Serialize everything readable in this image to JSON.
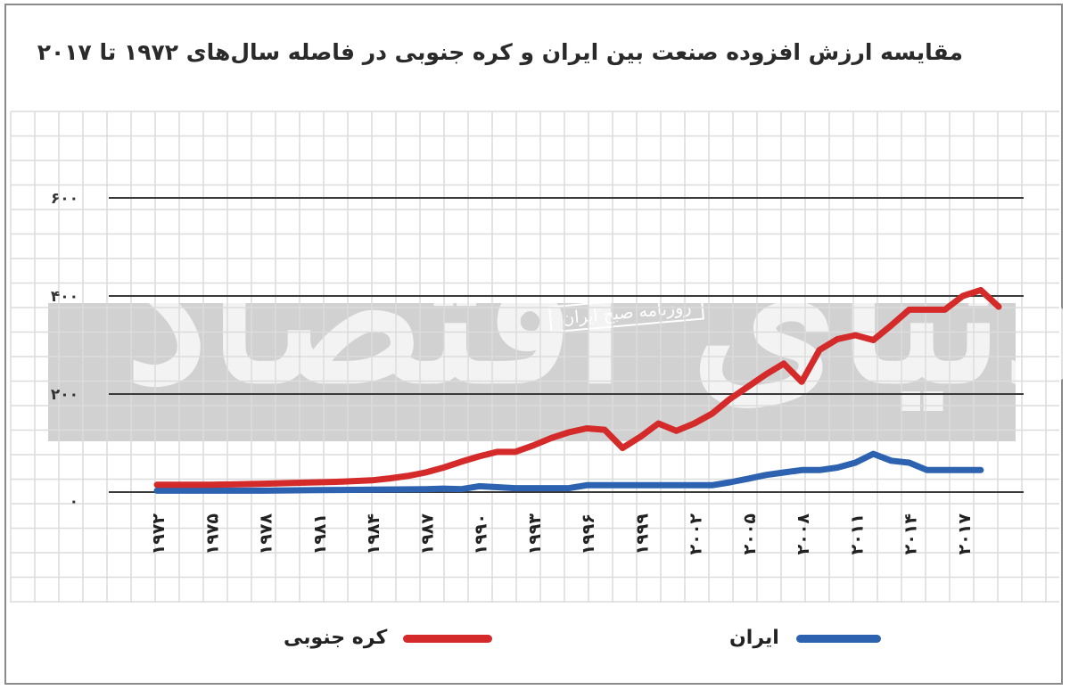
{
  "title": "مقایسه ارزش افزوده صنعت بین ایران و کره جنوبی در فاصله سال‌های ۱۹۷۲ تا ۲۰۱۷",
  "watermark": {
    "main": "دنیای اقتصاد",
    "sub": "روزنامه صبح ایران"
  },
  "legend": {
    "korea": "کره جنوبی",
    "iran": "ایران"
  },
  "colors": {
    "korea": "#d42a2a",
    "iran": "#2d62b0",
    "grid": "#dcdcdc",
    "major_grid": "#3a3a3a"
  },
  "chart_data": {
    "type": "line",
    "title": "مقایسه ارزش افزوده صنعت بین ایران و کره جنوبی در فاصله سال‌های ۱۹۷۲ تا ۲۰۱۷",
    "ylim": [
      0,
      600
    ],
    "y_ticks": [
      0,
      200,
      400,
      600
    ],
    "y_tick_labels": [
      "۰",
      "۲۰۰",
      "۴۰۰",
      "۶۰۰"
    ],
    "x_ticks": [
      1972,
      1975,
      1978,
      1981,
      1984,
      1987,
      1990,
      1993,
      1996,
      1999,
      2002,
      2005,
      2008,
      2011,
      2014,
      2017
    ],
    "x_tick_labels": [
      "۱۹۷۲",
      "۱۹۷۵",
      "۱۹۷۸",
      "۱۹۸۱",
      "۱۹۸۴",
      "۱۹۸۷",
      "۱۹۹۰",
      "۱۹۹۳",
      "۱۹۹۶",
      "۱۹۹۹",
      "۲۰۰۲",
      "۲۰۰۵",
      "۲۰۰۸",
      "۲۰۱۱",
      "۲۰۱۴",
      "۲۰۱۷"
    ],
    "grid": true,
    "legend_position": "bottom",
    "series": [
      {
        "name": "کره جنوبی",
        "color": "#d42a2a",
        "x": [
          1972,
          1975,
          1978,
          1980,
          1982,
          1984,
          1985,
          1986,
          1987,
          1988,
          1989,
          1990,
          1991,
          1992,
          1993,
          1994,
          1995,
          1996,
          1997,
          1998,
          1999,
          2000,
          2001,
          2002,
          2003,
          2004,
          2005,
          2006,
          2007,
          2008,
          2009,
          2010,
          2011,
          2012,
          2013,
          2014,
          2015,
          2016,
          2017,
          2018,
          2019
        ],
        "y": [
          15,
          15,
          17,
          19,
          21,
          24,
          28,
          33,
          40,
          50,
          62,
          73,
          82,
          82,
          95,
          110,
          122,
          130,
          127,
          90,
          113,
          140,
          125,
          140,
          160,
          190,
          215,
          240,
          262,
          225,
          290,
          312,
          320,
          310,
          340,
          372,
          372,
          372,
          400,
          412,
          378
        ]
      },
      {
        "name": "ایران",
        "color": "#2d62b0",
        "x": [
          1972,
          1975,
          1978,
          1981,
          1984,
          1987,
          1988,
          1989,
          1990,
          1991,
          1992,
          1993,
          1994,
          1995,
          1996,
          1997,
          1998,
          1999,
          2000,
          2001,
          2002,
          2003,
          2004,
          2005,
          2006,
          2007,
          2008,
          2009,
          2010,
          2011,
          2012,
          2013,
          2014,
          2015,
          2016,
          2017,
          2018
        ],
        "y": [
          3,
          3,
          3,
          4,
          5,
          6,
          7,
          6,
          12,
          10,
          8,
          8,
          8,
          8,
          14,
          14,
          14,
          14,
          14,
          14,
          14,
          14,
          20,
          27,
          35,
          40,
          45,
          45,
          50,
          60,
          78,
          64,
          60,
          45,
          45,
          45,
          45
        ]
      }
    ]
  }
}
